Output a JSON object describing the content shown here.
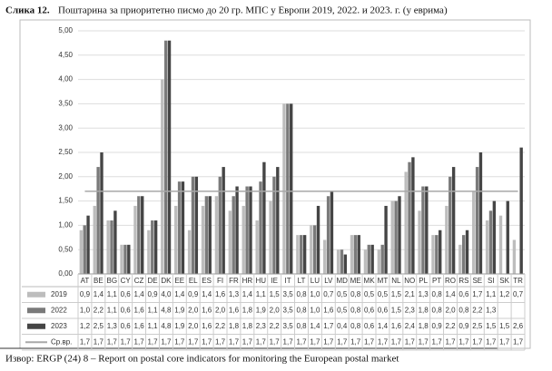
{
  "chart_data": {
    "type": "bar",
    "figure_label": "Слика 12.",
    "title": "Поштарина за приоритетно писмо до 20 гр. МПС у Европи 2019, 2022. и 2023. г. (у еврима)",
    "source": "Извор: ERGP (24) 8 – Report on postal core indicators for monitoring the European postal market",
    "categories": [
      "AT",
      "BE",
      "BG",
      "CY",
      "CZ",
      "DE",
      "DK",
      "EE",
      "EL",
      "ES",
      "FI",
      "FR",
      "HR",
      "HU",
      "IE",
      "IT",
      "LT",
      "LU",
      "LV",
      "MD",
      "ME",
      "MK",
      "MT",
      "NL",
      "NO",
      "PL",
      "PT",
      "RO",
      "RS",
      "SE",
      "SI",
      "SK",
      "TR"
    ],
    "ylim": [
      0,
      5
    ],
    "yticks": [
      {
        "value": 0,
        "label": "0,00"
      },
      {
        "value": 0.5,
        "label": "0,50"
      },
      {
        "value": 1,
        "label": "1,00"
      },
      {
        "value": 1.5,
        "label": "1,50"
      },
      {
        "value": 2,
        "label": "2,00"
      },
      {
        "value": 2.5,
        "label": "2,50"
      },
      {
        "value": 3,
        "label": "3,00"
      },
      {
        "value": 3.5,
        "label": "3,50"
      },
      {
        "value": 4,
        "label": "4,00"
      },
      {
        "value": 4.5,
        "label": "4,50"
      },
      {
        "value": 5,
        "label": "5,00"
      }
    ],
    "grid": true,
    "series": [
      {
        "name": "2019",
        "color": "#bdbdbd",
        "values": [
          0.9,
          1.4,
          1.1,
          0.6,
          1.4,
          0.9,
          4.0,
          1.4,
          0.9,
          1.4,
          1.6,
          1.3,
          1.4,
          1.1,
          1.5,
          3.5,
          0.8,
          1.0,
          0.7,
          0.5,
          0.8,
          0.5,
          0.5,
          1.5,
          2.1,
          1.3,
          0.8,
          1.4,
          0.6,
          1.7,
          1.1,
          1.2,
          0.7
        ],
        "value_labels": [
          "0,9",
          "1,4",
          "1,1",
          "0,6",
          "1,4",
          "0,9",
          "4,0",
          "1,4",
          "0,9",
          "1,4",
          "1,6",
          "1,3",
          "1,4",
          "1,1",
          "1,5",
          "3,5",
          "0,8",
          "1,0",
          "0,7",
          "0,5",
          "0,8",
          "0,5",
          "0,5",
          "1,5",
          "2,1",
          "1,3",
          "0,8",
          "1,4",
          "0,6",
          "1,7",
          "1,1",
          "1,2",
          "0,7"
        ]
      },
      {
        "name": "2022",
        "color": "#7a7a7a",
        "values": [
          1.0,
          2.2,
          1.1,
          0.6,
          1.6,
          1.1,
          4.8,
          1.9,
          2.0,
          1.6,
          2.0,
          1.6,
          1.8,
          1.9,
          2.0,
          3.5,
          0.8,
          1.0,
          1.6,
          0.5,
          0.8,
          0.6,
          0.6,
          1.5,
          2.3,
          1.8,
          0.8,
          2.0,
          0.8,
          2.2,
          1.3,
          null,
          null
        ],
        "value_labels": [
          "1,0",
          "2,2",
          "1,1",
          "0,6",
          "1,6",
          "1,1",
          "4,8",
          "1,9",
          "2,0",
          "1,6",
          "2,0",
          "1,6",
          "1,8",
          "1,9",
          "2,0",
          "3,5",
          "0,8",
          "1,0",
          "1,6",
          "0,5",
          "0,8",
          "0,6",
          "0,6",
          "1,5",
          "2,3",
          "1,8",
          "0,8",
          "2,0",
          "0,8",
          "2,2",
          "1,3",
          null,
          null
        ]
      },
      {
        "name": "2023",
        "color": "#454545",
        "values": [
          1.2,
          2.5,
          1.3,
          0.6,
          1.6,
          1.1,
          4.8,
          1.9,
          2.0,
          1.6,
          2.2,
          1.8,
          1.8,
          2.3,
          2.2,
          3.5,
          0.8,
          1.4,
          1.7,
          0.4,
          0.8,
          0.6,
          1.4,
          1.6,
          2.4,
          1.8,
          0.9,
          2.2,
          0.9,
          2.5,
          1.5,
          1.5,
          2.6
        ],
        "value_labels": [
          "1,2",
          "2,5",
          "1,3",
          "0,6",
          "1,6",
          "1,1",
          "4,8",
          "1,9",
          "2,0",
          "1,6",
          "2,2",
          "1,8",
          "1,8",
          "2,3",
          "2,2",
          "3,5",
          "0,8",
          "1,4",
          "1,7",
          "0,4",
          "0,8",
          "0,6",
          "1,4",
          "1,6",
          "2,4",
          "1,8",
          "0,9",
          "2,2",
          "0,9",
          "2,5",
          "1,5",
          "1,5",
          "2,6"
        ]
      },
      {
        "name": "Ср.вр.",
        "type": "line",
        "color": "#a8a8a8",
        "values": [
          1.7,
          1.7,
          1.7,
          1.7,
          1.7,
          1.7,
          1.7,
          1.7,
          1.7,
          1.7,
          1.7,
          1.7,
          1.7,
          1.7,
          1.7,
          1.7,
          1.7,
          1.7,
          1.7,
          1.7,
          1.7,
          1.7,
          1.7,
          1.7,
          1.7,
          1.7,
          1.7,
          1.7,
          1.7,
          1.7,
          1.7,
          1.7,
          1.7
        ],
        "value_labels": [
          "1,7",
          "1,7",
          "1,7",
          "1,7",
          "1,7",
          "1,7",
          "1,7",
          "1,7",
          "1,7",
          "1,7",
          "1,7",
          "1,7",
          "1,7",
          "1,7",
          "1,7",
          "1,7",
          "1,7",
          "1,7",
          "1,7",
          "1,7",
          "1,7",
          "1,7",
          "1,7",
          "1,7",
          "1,7",
          "1,7",
          "1,7",
          "1,7",
          "1,7",
          "1,7",
          "1,7",
          "1,7",
          "1,7"
        ]
      }
    ]
  }
}
